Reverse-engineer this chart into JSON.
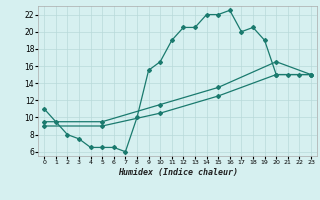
{
  "xlabel": "Humidex (Indice chaleur)",
  "bg_color": "#d6f0f0",
  "grid_color": "#b8dada",
  "line_color": "#1a7a6e",
  "xlim": [
    -0.5,
    23.5
  ],
  "ylim": [
    5.5,
    23
  ],
  "xticks": [
    0,
    1,
    2,
    3,
    4,
    5,
    6,
    7,
    8,
    9,
    10,
    11,
    12,
    13,
    14,
    15,
    16,
    17,
    18,
    19,
    20,
    21,
    22,
    23
  ],
  "yticks": [
    6,
    8,
    10,
    12,
    14,
    16,
    18,
    20,
    22
  ],
  "line1_x": [
    0,
    1,
    2,
    3,
    4,
    5,
    6,
    7,
    8,
    9,
    10,
    11,
    12,
    13,
    14,
    15,
    16,
    17,
    18,
    19,
    20,
    21,
    22,
    23
  ],
  "line1_y": [
    11,
    9.5,
    8,
    7.5,
    6.5,
    6.5,
    6.5,
    6,
    10,
    15.5,
    16.5,
    19,
    20.5,
    20.5,
    22,
    22,
    22.5,
    20,
    20.5,
    19,
    15,
    15,
    15,
    15
  ],
  "line2_x": [
    0,
    5,
    10,
    15,
    20,
    23
  ],
  "line2_y": [
    9.5,
    9.5,
    11.5,
    13.5,
    16.5,
    15.0
  ],
  "line3_x": [
    0,
    5,
    10,
    15,
    20,
    23
  ],
  "line3_y": [
    9.0,
    9.0,
    10.5,
    12.5,
    15.0,
    15.0
  ]
}
